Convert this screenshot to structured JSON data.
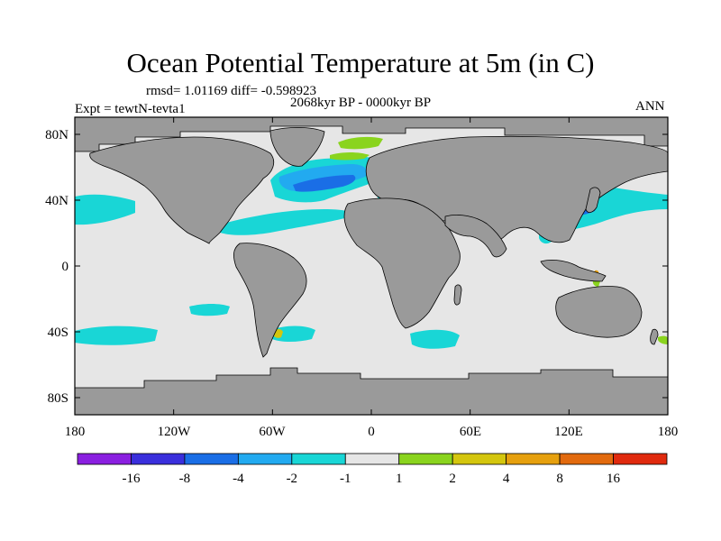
{
  "title": "Ocean Potential Temperature at 5m (in C)",
  "stats": "rmsd= 1.01169 diff= -0.598923",
  "period": "2068kyr BP - 0000kyr BP",
  "experiment": "Expt = tewtN-tevta1",
  "season": "ANN",
  "lat_ticks": [
    "80N",
    "40N",
    "0",
    "40S",
    "80S"
  ],
  "lon_ticks": [
    "180",
    "120W",
    "60W",
    "0",
    "60E",
    "120E",
    "180"
  ],
  "colorbar": {
    "labels": [
      "-16",
      "-8",
      "-4",
      "-2",
      "-1",
      "1",
      "2",
      "4",
      "8",
      "16"
    ],
    "colors": [
      "#8a1fe0",
      "#3a2fdc",
      "#1a6ee6",
      "#22aaf0",
      "#19d6d6",
      "#e6e6e6",
      "#8ad41e",
      "#d4c60e",
      "#e6a00e",
      "#e26a0e",
      "#e02a0e"
    ]
  },
  "colors": {
    "ocean_neutral": "#e6e6e6",
    "land": "#9a9a9a",
    "cyan": "#19d6d6",
    "light_blue": "#22aaf0",
    "blue": "#1a6ee6",
    "green": "#8ad41e",
    "yellow": "#d4c60e",
    "orange": "#e6a00e"
  }
}
